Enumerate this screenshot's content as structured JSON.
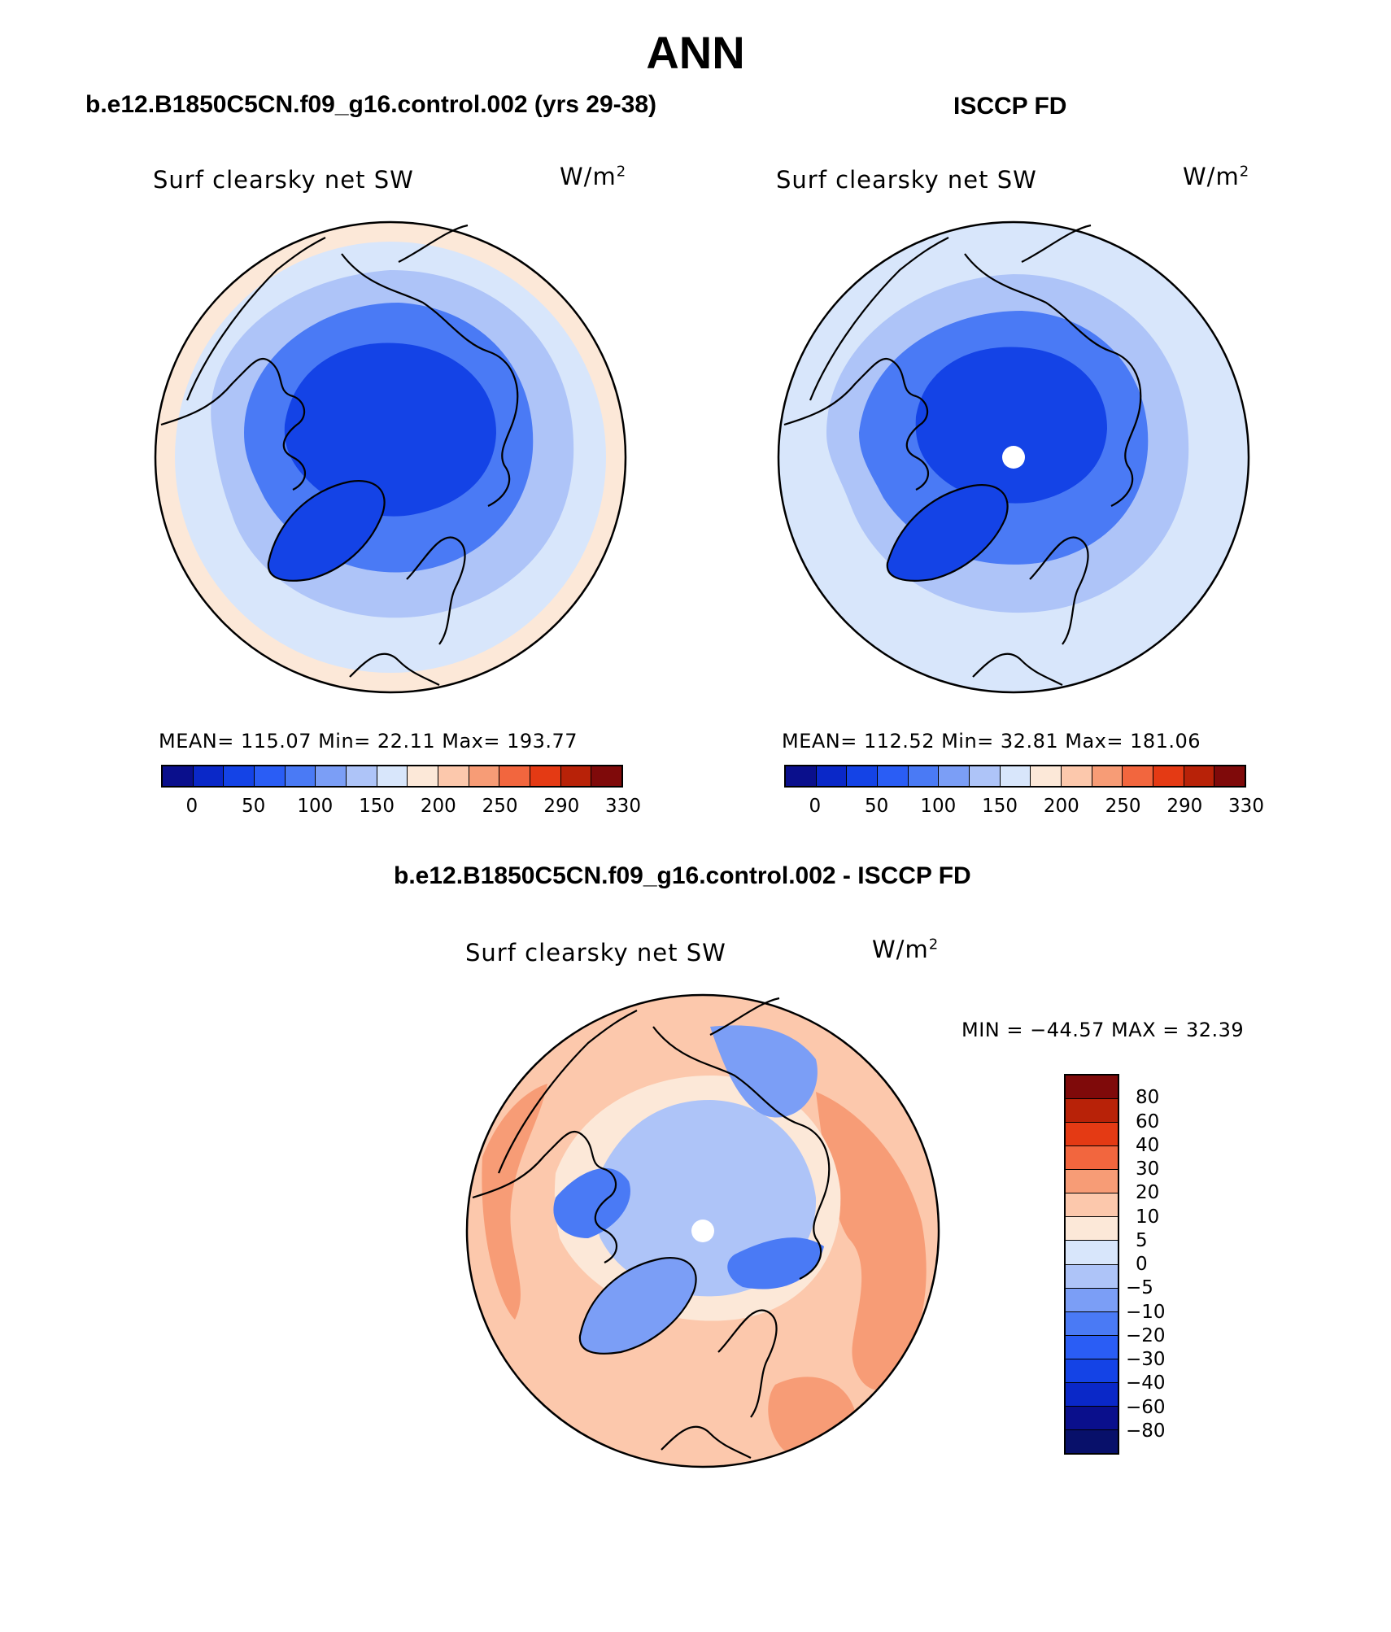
{
  "title": "ANN",
  "panels": [
    {
      "name": "model",
      "case_title": "b.e12.B1850C5CN.f09_g16.control.002 (yrs 29-38)",
      "variable": "Surf clearsky net SW",
      "units_base": "W/m",
      "units_exp": "2",
      "stats_text": "MEAN= 115.07   Min=   22.11   Max= 193.77",
      "stats": {
        "mean": 115.07,
        "min": 22.11,
        "max": 193.77
      }
    },
    {
      "name": "obs",
      "case_title": "ISCCP FD",
      "variable": "Surf clearsky net SW",
      "units_base": "W/m",
      "units_exp": "2",
      "stats_text": "MEAN= 112.52   Min=   32.81   Max= 181.06",
      "stats": {
        "mean": 112.52,
        "min": 32.81,
        "max": 181.06
      }
    },
    {
      "name": "difference",
      "case_title": "b.e12.B1850C5CN.f09_g16.control.002 - ISCCP FD",
      "variable": "Surf clearsky net SW",
      "units_base": "W/m",
      "units_exp": "2",
      "stats_text": "MIN = −44.57 MAX =   32.39",
      "stats": {
        "min": -44.57,
        "max": 32.39
      }
    }
  ],
  "abs_colorbar": {
    "tick_labels": [
      "0",
      "50",
      "100",
      "150",
      "200",
      "250",
      "290",
      "330"
    ],
    "colors": [
      "#0a0f8c",
      "#0a28c8",
      "#1443e6",
      "#2a5df5",
      "#4a7af5",
      "#7b9ef6",
      "#aec4f8",
      "#d8e6fb",
      "#fce8d8",
      "#fcc8ac",
      "#f79c76",
      "#f2663e",
      "#e43a14",
      "#b82208",
      "#7f0a0a"
    ]
  },
  "diff_colorbar": {
    "tick_labels": [
      "80",
      "60",
      "40",
      "30",
      "20",
      "10",
      "5",
      "0",
      "−5",
      "−10",
      "−20",
      "−30",
      "−40",
      "−60",
      "−80"
    ],
    "colors": [
      "#7f0a0a",
      "#b82208",
      "#e43a14",
      "#f2663e",
      "#f79c76",
      "#fcc8ac",
      "#fce8d8",
      "#d8e6fb",
      "#aec4f8",
      "#7b9ef6",
      "#4a7af5",
      "#2a5df5",
      "#1443e6",
      "#0a28c8",
      "#0a0f8c",
      "#08106a"
    ]
  },
  "map": {
    "projection": "north polar stereographic",
    "colors": {
      "deep_blue": "#1443e6",
      "mid_blue": "#2a5df5",
      "light_blue": "#7b9ef6",
      "pale_blue": "#d8e6fb",
      "pale_orange": "#fce8d8",
      "orange": "#f79c76"
    }
  }
}
